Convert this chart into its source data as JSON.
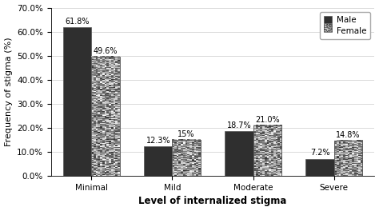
{
  "categories": [
    "Minimal",
    "Mild",
    "Moderate",
    "Severe"
  ],
  "male_values": [
    61.8,
    12.3,
    18.7,
    7.2
  ],
  "female_values": [
    49.6,
    15.0,
    21.0,
    14.8
  ],
  "male_labels": [
    "61.8%",
    "12.3%",
    "18.7%",
    "7.2%"
  ],
  "female_labels": [
    "49.6%",
    "15%",
    "21.0%",
    "14.8%"
  ],
  "male_color": "#2f2f2f",
  "ylabel": "Frequency of stigma (%)",
  "xlabel": "Level of internalized stigma",
  "ylim": [
    0,
    70
  ],
  "yticks": [
    0,
    10,
    20,
    30,
    40,
    50,
    60,
    70
  ],
  "ytick_labels": [
    "0.0%",
    "10.0%",
    "20.0%",
    "30.0%",
    "40.0%",
    "50.0%",
    "60.0%",
    "70.0%"
  ],
  "bar_width": 0.35,
  "legend_labels": [
    "Male",
    "Female"
  ],
  "background_color": "#ffffff",
  "label_fontsize": 7.0,
  "axis_label_fontsize": 8.5,
  "tick_fontsize": 7.5,
  "legend_fontsize": 7.5
}
